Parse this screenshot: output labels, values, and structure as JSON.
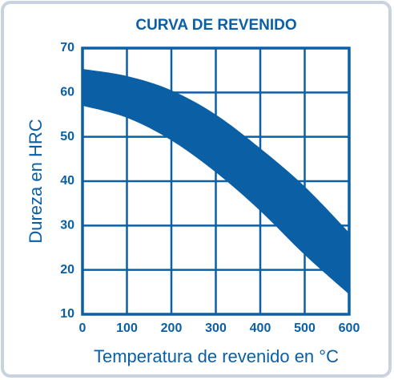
{
  "chart_data": {
    "type": "band",
    "title": "CURVA DE REVENIDO",
    "x_label": "Temperatura de revenido en °C",
    "y_label": "Dureza en HRC",
    "x": [
      0,
      100,
      200,
      300,
      400,
      500,
      600
    ],
    "series": [
      {
        "color": "#0b5fa5",
        "values": [
          65.3,
          63.7,
          60.5,
          55,
          47.4,
          38.8,
          28.4
        ]
      },
      {
        "color": "#0b5fa5",
        "values": [
          57,
          54.3,
          49.2,
          42,
          33.3,
          23.4,
          14.5
        ]
      }
    ],
    "xlim": [
      0,
      600
    ],
    "xticks": [
      0,
      100,
      200,
      300,
      400,
      500,
      600
    ],
    "ylim": [
      10,
      70
    ],
    "yticks": [
      10,
      20,
      30,
      40,
      50,
      60,
      70
    ],
    "grid": true,
    "color": "#0b5fa5"
  }
}
